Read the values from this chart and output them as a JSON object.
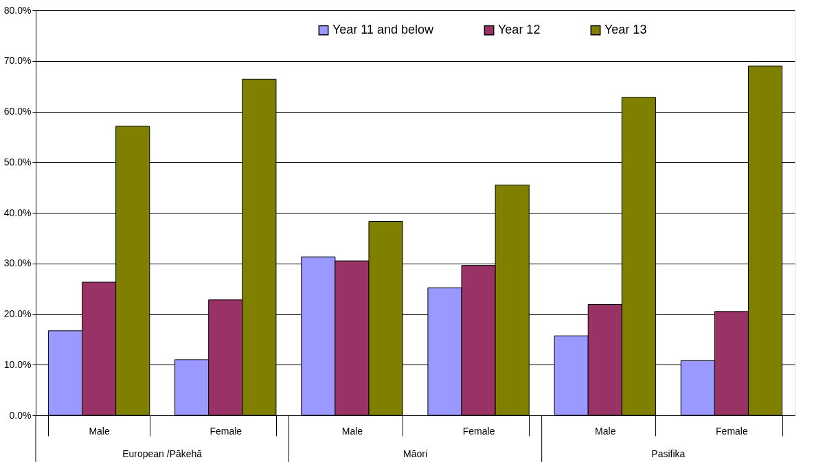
{
  "chart_data": {
    "type": "bar",
    "categories": [
      "Male",
      "Female",
      "Male",
      "Female",
      "Male",
      "Female"
    ],
    "annotations": [
      "European /Pākehā",
      "Māori",
      "Pasifika"
    ],
    "series": [
      {
        "name": "Year 11 and below",
        "color": "#9999ff",
        "values": [
          16.7,
          11.0,
          31.3,
          25.2,
          15.7,
          10.8
        ]
      },
      {
        "name": "Year 12",
        "color": "#993366",
        "values": [
          26.3,
          22.8,
          30.5,
          29.6,
          21.9,
          20.5
        ]
      },
      {
        "name": "Year 13",
        "color": "#808000",
        "values": [
          57.1,
          66.4,
          38.3,
          45.5,
          62.8,
          69.0
        ]
      }
    ],
    "ylim": [
      0,
      80
    ],
    "yticks": [
      {
        "value": 0,
        "label": "0.0%"
      },
      {
        "value": 10,
        "label": "10.0%"
      },
      {
        "value": 20,
        "label": "20.0%"
      },
      {
        "value": 30,
        "label": "30.0%"
      },
      {
        "value": 40,
        "label": "40.0%"
      },
      {
        "value": 50,
        "label": "50.0%"
      },
      {
        "value": 60,
        "label": "60.0%"
      },
      {
        "value": 70,
        "label": "70.0%"
      },
      {
        "value": 80,
        "label": "80.0%"
      }
    ],
    "grid": "y",
    "legend": "top"
  }
}
